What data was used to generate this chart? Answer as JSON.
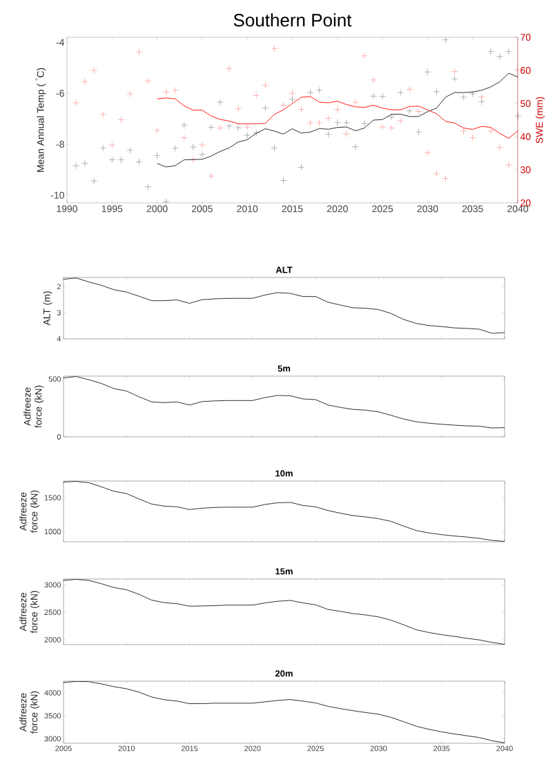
{
  "chart_data": [
    {
      "type": "line",
      "title": "Southern Point",
      "ylabel": "Mean Annual Temp ( $^{°}$C)",
      "y2label": "SWE (mm)",
      "xlim": [
        1990,
        2040
      ],
      "xticks": [
        1990,
        1995,
        2000,
        2005,
        2010,
        2015,
        2020,
        2025,
        2030,
        2035,
        2040
      ],
      "ylim": [
        -10.3,
        -3.8
      ],
      "yticks": [
        -10,
        -8,
        -6,
        -4
      ],
      "y2lim": [
        20,
        70
      ],
      "y2ticks": [
        20,
        30,
        40,
        50,
        60,
        70
      ],
      "series": [
        {
          "type": "scatter",
          "marker": "cross",
          "color": "#808080",
          "x": [
            1991,
            1992,
            1993,
            1994,
            1995,
            1996,
            1997,
            1998,
            1999,
            2000,
            2001,
            2002,
            2003,
            2004,
            2005,
            2006,
            2007,
            2008,
            2009,
            2010,
            2011,
            2012,
            2013,
            2014,
            2015,
            2016,
            2017,
            2018,
            2019,
            2020,
            2021,
            2022,
            2023,
            2024,
            2025,
            2026,
            2027,
            2028,
            2029,
            2030,
            2031,
            2032,
            2033,
            2034,
            2035,
            2036,
            2037,
            2038,
            2039,
            2040
          ],
          "values": [
            -8.84,
            -8.75,
            -9.44,
            -8.14,
            -8.61,
            -8.61,
            -8.23,
            -8.69,
            -9.67,
            -8.44,
            -10.25,
            -8.16,
            -7.25,
            -8.11,
            -8.4,
            -7.33,
            -6.35,
            -7.28,
            -7.35,
            -7.65,
            -7.55,
            -6.58,
            -8.14,
            -9.42,
            -6.24,
            -8.9,
            -5.97,
            -5.88,
            -7.6,
            -7.15,
            -7.15,
            -8.1,
            -7.18,
            -6.11,
            -6.12,
            -6.93,
            -5.97,
            -6.69,
            -7.52,
            -5.16,
            -5.94,
            -3.9,
            -5.43,
            -6.15,
            -6.02,
            -6.33,
            -4.36,
            -4.56,
            -4.36,
            -6.89
          ]
        },
        {
          "type": "line",
          "color": "#1a1a1a",
          "x": [
            2000,
            2001,
            2002,
            2003,
            2004,
            2005,
            2006,
            2007,
            2008,
            2009,
            2010,
            2011,
            2012,
            2013,
            2014,
            2015,
            2016,
            2017,
            2018,
            2019,
            2020,
            2021,
            2022,
            2023,
            2024,
            2025,
            2026,
            2027,
            2028,
            2029,
            2030,
            2031,
            2032,
            2033,
            2034,
            2035,
            2036,
            2037,
            2038,
            2039,
            2040
          ],
          "values": [
            -8.75,
            -8.89,
            -8.84,
            -8.61,
            -8.6,
            -8.59,
            -8.46,
            -8.28,
            -8.14,
            -7.91,
            -7.82,
            -7.57,
            -7.39,
            -7.48,
            -7.6,
            -7.39,
            -7.56,
            -7.52,
            -7.38,
            -7.41,
            -7.34,
            -7.32,
            -7.47,
            -7.36,
            -7.05,
            -7.03,
            -6.82,
            -6.82,
            -6.91,
            -6.91,
            -6.72,
            -6.58,
            -6.15,
            -5.97,
            -5.97,
            -5.95,
            -5.88,
            -5.75,
            -5.55,
            -5.21,
            -5.36
          ]
        },
        {
          "type": "scatter",
          "marker": "cross",
          "axis": "y2",
          "color": "#ff8080",
          "x": [
            1991,
            1992,
            1993,
            1994,
            1995,
            1996,
            1997,
            1998,
            1999,
            2000,
            2001,
            2002,
            2003,
            2004,
            2005,
            2006,
            2007,
            2008,
            2009,
            2010,
            2011,
            2012,
            2013,
            2014,
            2015,
            2016,
            2017,
            2018,
            2019,
            2020,
            2021,
            2022,
            2023,
            2024,
            2025,
            2026,
            2027,
            2028,
            2029,
            2030,
            2031,
            2032,
            2033,
            2034,
            2035,
            2036,
            2037,
            2038,
            2039,
            2040
          ],
          "values": [
            50.2,
            56.6,
            60.0,
            46.7,
            37.5,
            45.1,
            52.9,
            65.5,
            56.8,
            41.9,
            53.5,
            54.0,
            39.7,
            33.1,
            37.5,
            28.1,
            42.6,
            60.5,
            48.4,
            42.9,
            52.4,
            55.5,
            66.6,
            49.5,
            53.1,
            48.2,
            44.2,
            44.2,
            45.5,
            48.2,
            40.8,
            50.4,
            64.4,
            57.1,
            42.9,
            42.6,
            44.8,
            54.3,
            47.6,
            35.2,
            28.8,
            27.4,
            59.7,
            41.7,
            39.7,
            52.0,
            41.7,
            36.7,
            31.4,
            60.2
          ]
        },
        {
          "type": "line",
          "axis": "y2",
          "color": "#ff0000",
          "x": [
            2000,
            2001,
            2002,
            2003,
            2004,
            2005,
            2006,
            2007,
            2008,
            2009,
            2010,
            2011,
            2012,
            2013,
            2014,
            2015,
            2016,
            2017,
            2018,
            2019,
            2020,
            2021,
            2022,
            2023,
            2024,
            2025,
            2026,
            2027,
            2028,
            2029,
            2030,
            2031,
            2032,
            2033,
            2034,
            2035,
            2036,
            2037,
            2038,
            2039,
            2040
          ],
          "values": [
            51.4,
            51.7,
            51.4,
            49.3,
            48.0,
            48.0,
            46.2,
            45.2,
            44.7,
            43.9,
            43.9,
            43.9,
            44.0,
            46.7,
            48.1,
            50.0,
            51.9,
            52.1,
            50.4,
            50.2,
            50.7,
            49.7,
            49.0,
            48.8,
            49.5,
            48.6,
            48.1,
            48.1,
            49.1,
            49.2,
            48.1,
            46.9,
            44.6,
            44.1,
            42.6,
            42.2,
            43.1,
            42.8,
            41.0,
            39.5,
            41.7
          ]
        }
      ]
    },
    {
      "type": "line",
      "title": "ALT",
      "ylabel": "ALT (m)",
      "tick_labels": "y",
      "xlim": [
        2005,
        2040
      ],
      "xticks": [
        2005,
        2010,
        2015,
        2020,
        2025,
        2030,
        2035,
        2040
      ],
      "ylim": [
        4,
        1.65
      ],
      "yticks": [
        2,
        3,
        4
      ],
      "x": [
        2005,
        2006,
        2007,
        2008,
        2009,
        2010,
        2011,
        2012,
        2013,
        2014,
        2015,
        2016,
        2017,
        2018,
        2019,
        2020,
        2021,
        2022,
        2023,
        2024,
        2025,
        2026,
        2027,
        2028,
        2029,
        2030,
        2031,
        2032,
        2033,
        2034,
        2035,
        2036,
        2037,
        2038,
        2039,
        2040
      ],
      "series": [
        {
          "color": "#1a1a1a",
          "values": [
            1.72,
            1.67,
            1.82,
            1.95,
            2.12,
            2.21,
            2.37,
            2.54,
            2.54,
            2.51,
            2.64,
            2.5,
            2.47,
            2.45,
            2.45,
            2.45,
            2.32,
            2.23,
            2.26,
            2.38,
            2.38,
            2.6,
            2.71,
            2.81,
            2.83,
            2.88,
            3.03,
            3.26,
            3.41,
            3.49,
            3.53,
            3.58,
            3.6,
            3.63,
            3.79,
            3.76
          ]
        }
      ]
    },
    {
      "type": "line",
      "title": "5m",
      "ylabel": "Adfreeze force (kN)",
      "tick_labels": "y",
      "xlim": [
        2005,
        2040
      ],
      "xticks": [
        2005,
        2010,
        2015,
        2020,
        2025,
        2030,
        2035,
        2040
      ],
      "ylim": [
        0,
        525
      ],
      "yticks": [
        0,
        500
      ],
      "x": [
        2005,
        2006,
        2007,
        2008,
        2009,
        2010,
        2011,
        2012,
        2013,
        2014,
        2015,
        2016,
        2017,
        2018,
        2019,
        2020,
        2021,
        2022,
        2023,
        2024,
        2025,
        2026,
        2027,
        2028,
        2029,
        2030,
        2031,
        2032,
        2033,
        2034,
        2035,
        2036,
        2037,
        2038,
        2039,
        2040
      ],
      "series": [
        {
          "color": "#1a1a1a",
          "values": [
            510,
            522,
            494,
            462,
            417,
            396,
            346,
            302,
            296,
            302,
            275,
            305,
            311,
            314,
            314,
            314,
            340,
            358,
            355,
            328,
            322,
            275,
            254,
            237,
            231,
            216,
            186,
            154,
            130,
            118,
            109,
            101,
            95,
            92,
            77,
            80
          ]
        }
      ]
    },
    {
      "type": "line",
      "title": "10m",
      "ylabel": "Adfreeze force (kN)",
      "tick_labels": "y",
      "xlim": [
        2005,
        2040
      ],
      "xticks": [
        2005,
        2010,
        2015,
        2020,
        2025,
        2030,
        2035,
        2040
      ],
      "ylim": [
        850,
        1745
      ],
      "yticks": [
        1000,
        1500
      ],
      "x": [
        2005,
        2006,
        2007,
        2008,
        2009,
        2010,
        2011,
        2012,
        2013,
        2014,
        2015,
        2016,
        2017,
        2018,
        2019,
        2020,
        2021,
        2022,
        2023,
        2024,
        2025,
        2026,
        2027,
        2028,
        2029,
        2030,
        2031,
        2032,
        2033,
        2034,
        2035,
        2036,
        2037,
        2038,
        2039,
        2040
      ],
      "series": [
        {
          "color": "#1a1a1a",
          "values": [
            1730,
            1740,
            1720,
            1660,
            1595,
            1560,
            1480,
            1405,
            1375,
            1365,
            1325,
            1345,
            1355,
            1360,
            1360,
            1360,
            1400,
            1425,
            1430,
            1385,
            1365,
            1310,
            1270,
            1235,
            1215,
            1190,
            1150,
            1080,
            1015,
            980,
            955,
            935,
            920,
            900,
            870,
            855
          ]
        }
      ]
    },
    {
      "type": "line",
      "title": "15m",
      "ylabel": "Adfreeze force (kN)",
      "tick_labels": "y",
      "xlim": [
        2005,
        2040
      ],
      "xticks": [
        2005,
        2010,
        2015,
        2020,
        2025,
        2030,
        2035,
        2040
      ],
      "ylim": [
        1910,
        3105
      ],
      "yticks": [
        2000,
        2500,
        3000
      ],
      "x": [
        2005,
        2006,
        2007,
        2008,
        2009,
        2010,
        2011,
        2012,
        2013,
        2014,
        2015,
        2016,
        2017,
        2018,
        2019,
        2020,
        2021,
        2022,
        2023,
        2024,
        2025,
        2026,
        2027,
        2028,
        2029,
        2030,
        2031,
        2032,
        2033,
        2034,
        2035,
        2036,
        2037,
        2038,
        2039,
        2040
      ],
      "series": [
        {
          "color": "#1a1a1a",
          "values": [
            3080,
            3100,
            3080,
            3020,
            2950,
            2910,
            2825,
            2720,
            2675,
            2655,
            2610,
            2615,
            2620,
            2630,
            2630,
            2630,
            2670,
            2700,
            2715,
            2670,
            2635,
            2550,
            2515,
            2475,
            2450,
            2415,
            2355,
            2270,
            2180,
            2130,
            2090,
            2060,
            2025,
            1995,
            1950,
            1915
          ]
        }
      ]
    },
    {
      "type": "line",
      "title": "20m",
      "ylabel": "Adfreeze force (kN)",
      "xlim": [
        2005,
        2040
      ],
      "xticks": [
        2005,
        2010,
        2015,
        2020,
        2025,
        2030,
        2035,
        2040
      ],
      "ylim": [
        2900,
        4255
      ],
      "yticks": [
        3000,
        3500,
        4000
      ],
      "x": [
        2005,
        2006,
        2007,
        2008,
        2009,
        2010,
        2011,
        2012,
        2013,
        2014,
        2015,
        2016,
        2017,
        2018,
        2019,
        2020,
        2021,
        2022,
        2023,
        2024,
        2025,
        2026,
        2027,
        2028,
        2029,
        2030,
        2031,
        2032,
        2033,
        2034,
        2035,
        2036,
        2037,
        2038,
        2039,
        2040
      ],
      "series": [
        {
          "color": "#1a1a1a",
          "values": [
            4225,
            4250,
            4245,
            4195,
            4135,
            4090,
            4015,
            3910,
            3850,
            3820,
            3765,
            3765,
            3775,
            3775,
            3775,
            3775,
            3805,
            3835,
            3855,
            3820,
            3780,
            3705,
            3655,
            3610,
            3570,
            3535,
            3465,
            3370,
            3270,
            3205,
            3150,
            3105,
            3065,
            3025,
            2955,
            2910
          ]
        }
      ]
    }
  ]
}
